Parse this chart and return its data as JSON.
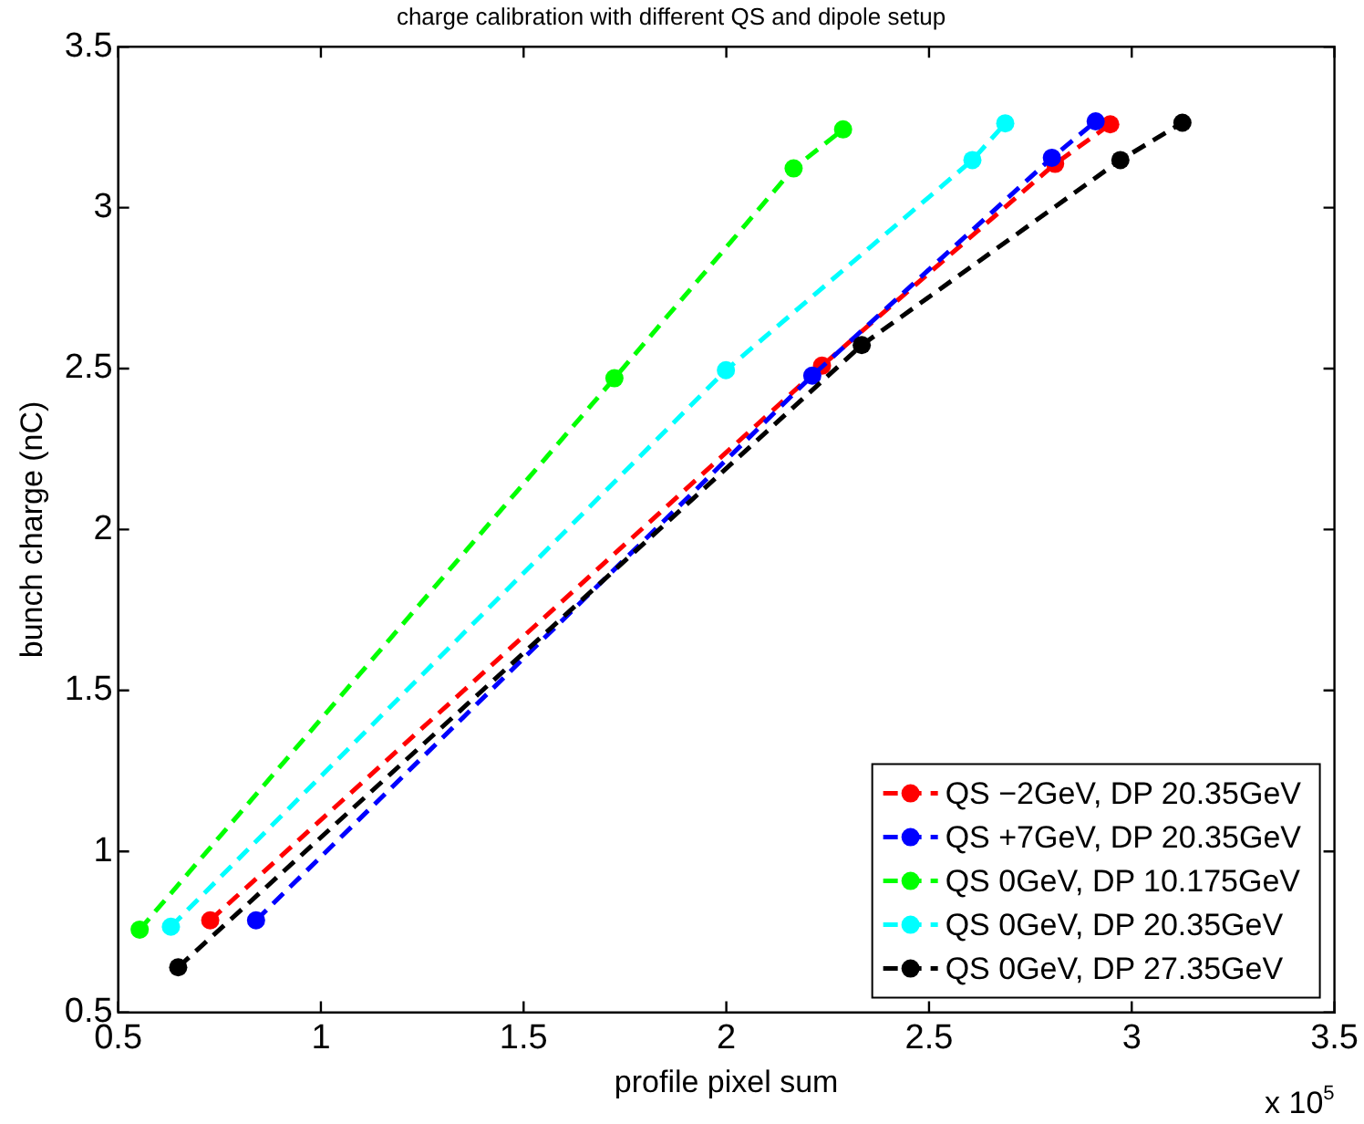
{
  "chart_data": {
    "type": "line",
    "title": "charge calibration with different QS and dipole setup",
    "xlabel": "profile pixel sum",
    "ylabel": "bunch charge (nC)",
    "annotations": [
      "x 10$^{5}$"
    ],
    "xlim": [
      0.5,
      3.5
    ],
    "xticks": [
      0.5,
      1,
      1.5,
      2,
      2.5,
      3,
      3.5
    ],
    "ylim": [
      0.5,
      3.5
    ],
    "yticks": [
      0.5,
      1,
      1.5,
      2,
      2.5,
      3,
      3.5
    ],
    "grid": false,
    "legend": "bottom right",
    "marker": "circle",
    "line_style": "dashed",
    "series": [
      {
        "name": "QS −2GeV, DP 20.35GeV",
        "color": "#ff0000",
        "x": [
          0.727,
          2.236,
          2.811,
          2.947
        ],
        "values": [
          0.786,
          2.509,
          3.136,
          3.259
        ]
      },
      {
        "name": "QS +7GeV, DP 20.35GeV",
        "color": "#0000ff",
        "x": [
          0.84,
          2.212,
          2.803,
          2.911
        ],
        "values": [
          0.786,
          2.478,
          3.155,
          3.268
        ]
      },
      {
        "name": "QS 0GeV, DP 10.175GeV",
        "color": "#00ff00",
        "x": [
          0.553,
          1.724,
          2.166,
          2.288
        ],
        "values": [
          0.757,
          2.47,
          3.122,
          3.243
        ]
      },
      {
        "name": "QS 0GeV, DP 20.35GeV",
        "color": "#00ffff",
        "x": [
          0.63,
          1.999,
          2.607,
          2.688
        ],
        "values": [
          0.766,
          2.495,
          3.148,
          3.262
        ]
      },
      {
        "name": "QS 0GeV, DP 27.35GeV",
        "color": "#000000",
        "x": [
          0.648,
          2.334,
          2.972,
          3.125
        ],
        "values": [
          0.64,
          2.573,
          3.148,
          3.264
        ]
      }
    ]
  }
}
